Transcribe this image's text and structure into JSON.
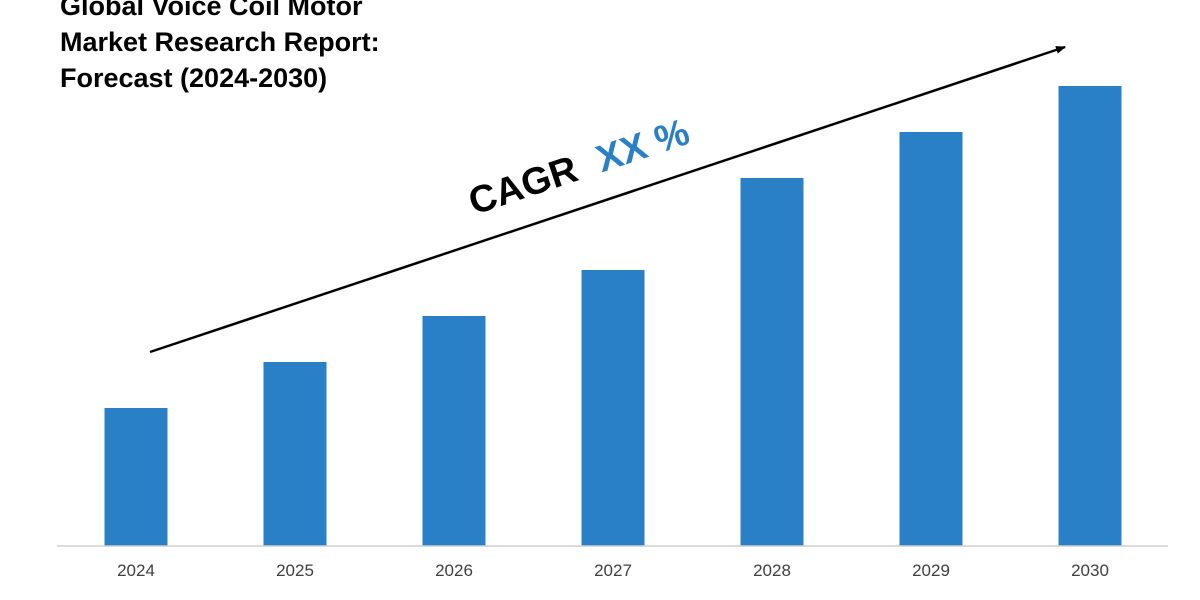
{
  "chart_data": {
    "type": "bar",
    "title_lines": [
      "Global Voice Coil Motor",
      "Market Research Report:",
      "Forecast (2024-2030)"
    ],
    "categories": [
      "2024",
      "2025",
      "2026",
      "2027",
      "2028",
      "2029",
      "2030"
    ],
    "values": [
      30,
      40,
      50,
      60,
      80,
      90,
      100
    ],
    "ylim": [
      0,
      100
    ],
    "grid": false,
    "legend": "none",
    "annotation": {
      "prefix": "CAGR",
      "value": "XX %"
    },
    "colors": {
      "bar": "#2a80c6",
      "axis": "#d0d0d0",
      "tick_label": "#404040",
      "annotation_prefix": "#000000",
      "annotation_value": "#2a80c6",
      "arrow": "#000000"
    }
  }
}
